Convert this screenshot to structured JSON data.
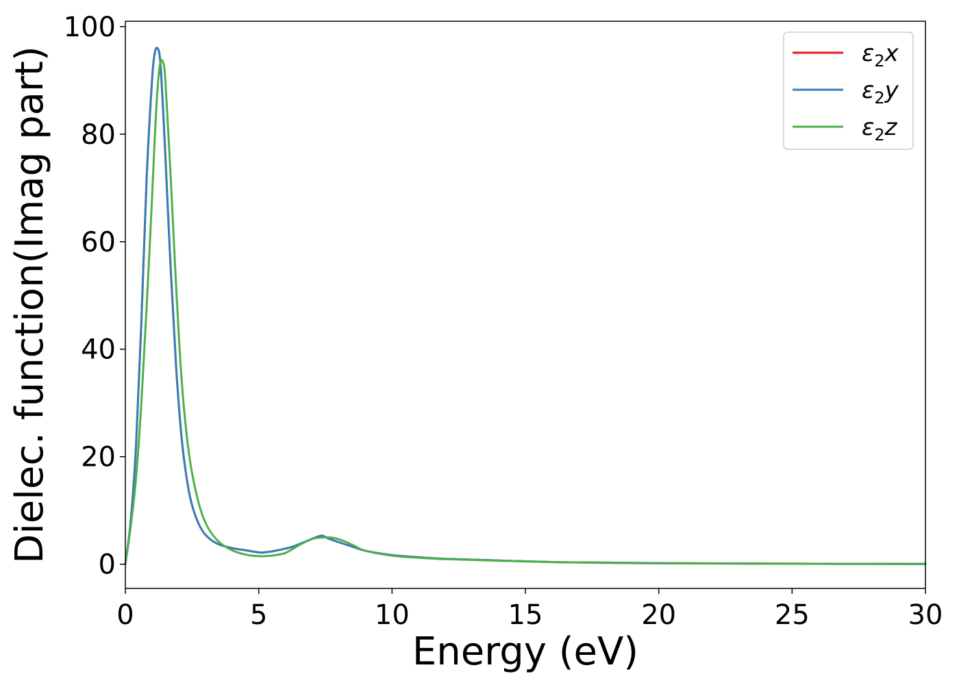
{
  "chart_data": {
    "type": "line",
    "xlabel": "Energy (eV)",
    "ylabel": "Dielec. function(Imag part)",
    "xlim": [
      0,
      30
    ],
    "ylim": [
      -4.5,
      101
    ],
    "xticks": [
      0,
      5,
      10,
      15,
      20,
      25,
      30
    ],
    "yticks": [
      0,
      20,
      40,
      60,
      80,
      100
    ],
    "grid": false,
    "legend_position": "top-right",
    "series": [
      {
        "name": "ε2x",
        "symbol": "ε",
        "sub": "2",
        "axis": "x",
        "color": "#e41a1c",
        "x": [
          0,
          0.2,
          0.4,
          0.6,
          0.8,
          1.0,
          1.1,
          1.2,
          1.3,
          1.4,
          1.5,
          1.7,
          1.9,
          2.1,
          2.3,
          2.5,
          2.8,
          3.1,
          3.5,
          4.0,
          4.5,
          5.0,
          5.2,
          5.5,
          6.0,
          6.3,
          6.8,
          7.2,
          7.4,
          7.6,
          8.0,
          8.5,
          9.0,
          10.0,
          11.0,
          12.0,
          14.0,
          16.0,
          18.0,
          20.0,
          25.0,
          30.0
        ],
        "y": [
          0,
          8,
          22,
          45,
          72,
          90,
          95,
          96,
          94,
          86,
          76,
          55,
          37,
          24,
          16,
          11,
          7,
          5,
          3.7,
          3.0,
          2.6,
          2.2,
          2.2,
          2.4,
          2.9,
          3.3,
          4.3,
          5.1,
          5.3,
          4.8,
          4.1,
          3.3,
          2.5,
          1.7,
          1.3,
          1.0,
          0.7,
          0.4,
          0.3,
          0.2,
          0.1,
          0.05
        ]
      },
      {
        "name": "ε2y",
        "symbol": "ε",
        "sub": "2",
        "axis": "y",
        "color": "#377eb8",
        "x": [
          0,
          0.2,
          0.4,
          0.6,
          0.8,
          1.0,
          1.1,
          1.2,
          1.3,
          1.4,
          1.5,
          1.7,
          1.9,
          2.1,
          2.3,
          2.5,
          2.8,
          3.1,
          3.5,
          4.0,
          4.5,
          5.0,
          5.2,
          5.5,
          6.0,
          6.3,
          6.8,
          7.2,
          7.4,
          7.6,
          8.0,
          8.5,
          9.0,
          10.0,
          11.0,
          12.0,
          14.0,
          16.0,
          18.0,
          20.0,
          25.0,
          30.0
        ],
        "y": [
          0,
          8,
          22,
          45,
          72,
          90,
          95,
          96,
          94,
          86,
          76,
          55,
          37,
          24,
          16,
          11,
          7,
          5,
          3.7,
          3.0,
          2.6,
          2.2,
          2.2,
          2.4,
          2.9,
          3.3,
          4.3,
          5.1,
          5.3,
          4.8,
          4.1,
          3.3,
          2.5,
          1.7,
          1.3,
          1.0,
          0.7,
          0.4,
          0.3,
          0.2,
          0.1,
          0.05
        ]
      },
      {
        "name": "ε2z",
        "symbol": "ε",
        "sub": "2",
        "axis": "z",
        "color": "#4daf4a",
        "x": [
          0,
          0.2,
          0.4,
          0.6,
          0.8,
          1.0,
          1.1,
          1.2,
          1.3,
          1.4,
          1.5,
          1.7,
          1.9,
          2.1,
          2.3,
          2.5,
          2.8,
          3.1,
          3.5,
          4.0,
          4.5,
          5.0,
          5.5,
          6.0,
          6.5,
          7.0,
          7.5,
          7.8,
          8.2,
          8.6,
          9.0,
          10.0,
          11.0,
          12.0,
          14.0,
          16.0,
          18.0,
          20.0,
          25.0,
          30.0
        ],
        "y": [
          0,
          7,
          16,
          30,
          48,
          68,
          79,
          88,
          93,
          93.5,
          90,
          72,
          52,
          35,
          24,
          17,
          10.5,
          6.8,
          4.2,
          2.6,
          1.8,
          1.5,
          1.6,
          2.1,
          3.5,
          4.7,
          5.0,
          4.9,
          4.3,
          3.4,
          2.5,
          1.6,
          1.2,
          0.95,
          0.65,
          0.4,
          0.25,
          0.15,
          0.08,
          0.04
        ]
      }
    ]
  }
}
